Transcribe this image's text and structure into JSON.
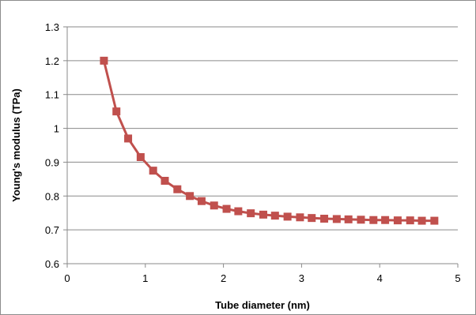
{
  "chart_data": {
    "type": "line",
    "title": "",
    "xlabel": "Tube diameter (nm)",
    "ylabel": "Young's modulus (TPa)",
    "xlim": [
      0,
      5
    ],
    "ylim": [
      0.6,
      1.3
    ],
    "x_ticks": [
      "0",
      "1",
      "2",
      "3",
      "4",
      "5"
    ],
    "y_ticks": [
      "0.6",
      "0.7",
      "0.8",
      "0.9",
      "1",
      "1.1",
      "1.2",
      "1.3"
    ],
    "grid": "horizontal",
    "legend": "none",
    "series": [
      {
        "color": "#c0504d",
        "marker": "square",
        "points": [
          {
            "x": 0.47,
            "y": 1.2
          },
          {
            "x": 0.63,
            "y": 1.05
          },
          {
            "x": 0.78,
            "y": 0.97
          },
          {
            "x": 0.94,
            "y": 0.915
          },
          {
            "x": 1.1,
            "y": 0.875
          },
          {
            "x": 1.25,
            "y": 0.845
          },
          {
            "x": 1.41,
            "y": 0.82
          },
          {
            "x": 1.57,
            "y": 0.8
          },
          {
            "x": 1.72,
            "y": 0.785
          },
          {
            "x": 1.88,
            "y": 0.772
          },
          {
            "x": 2.04,
            "y": 0.762
          },
          {
            "x": 2.19,
            "y": 0.755
          },
          {
            "x": 2.35,
            "y": 0.749
          },
          {
            "x": 2.51,
            "y": 0.745
          },
          {
            "x": 2.66,
            "y": 0.742
          },
          {
            "x": 2.82,
            "y": 0.739
          },
          {
            "x": 2.98,
            "y": 0.737
          },
          {
            "x": 3.13,
            "y": 0.735
          },
          {
            "x": 3.29,
            "y": 0.733
          },
          {
            "x": 3.45,
            "y": 0.732
          },
          {
            "x": 3.6,
            "y": 0.731
          },
          {
            "x": 3.76,
            "y": 0.73
          },
          {
            "x": 3.92,
            "y": 0.729
          },
          {
            "x": 4.07,
            "y": 0.729
          },
          {
            "x": 4.23,
            "y": 0.728
          },
          {
            "x": 4.39,
            "y": 0.728
          },
          {
            "x": 4.54,
            "y": 0.727
          },
          {
            "x": 4.7,
            "y": 0.727
          }
        ]
      }
    ]
  }
}
